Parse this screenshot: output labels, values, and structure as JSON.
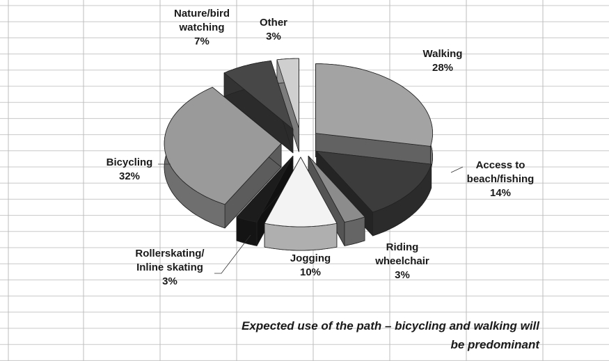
{
  "chart_data": {
    "type": "pie3d",
    "categories": [
      "Walking",
      "Access to\nbeach/fishing",
      "Riding\nwheelchair",
      "Jogging",
      "Rollerskating/\nInline skating",
      "Bicycling",
      "Nature/bird\nwatching",
      "Other"
    ],
    "values": [
      28,
      14,
      3,
      10,
      3,
      32,
      7,
      3
    ],
    "value_labels": [
      "28%",
      "14%",
      "3%",
      "10%",
      "3%",
      "32%",
      "7%",
      "3%"
    ],
    "colors": [
      "#a3a3a3",
      "#3c3c3c",
      "#8c8c8c",
      "#f3f3f3",
      "#1c1c1c",
      "#9a9a9a",
      "#474747",
      "#cfcfcf"
    ],
    "annotation": "Expected use of the path – bicycling and walking will\nbe predominant"
  }
}
